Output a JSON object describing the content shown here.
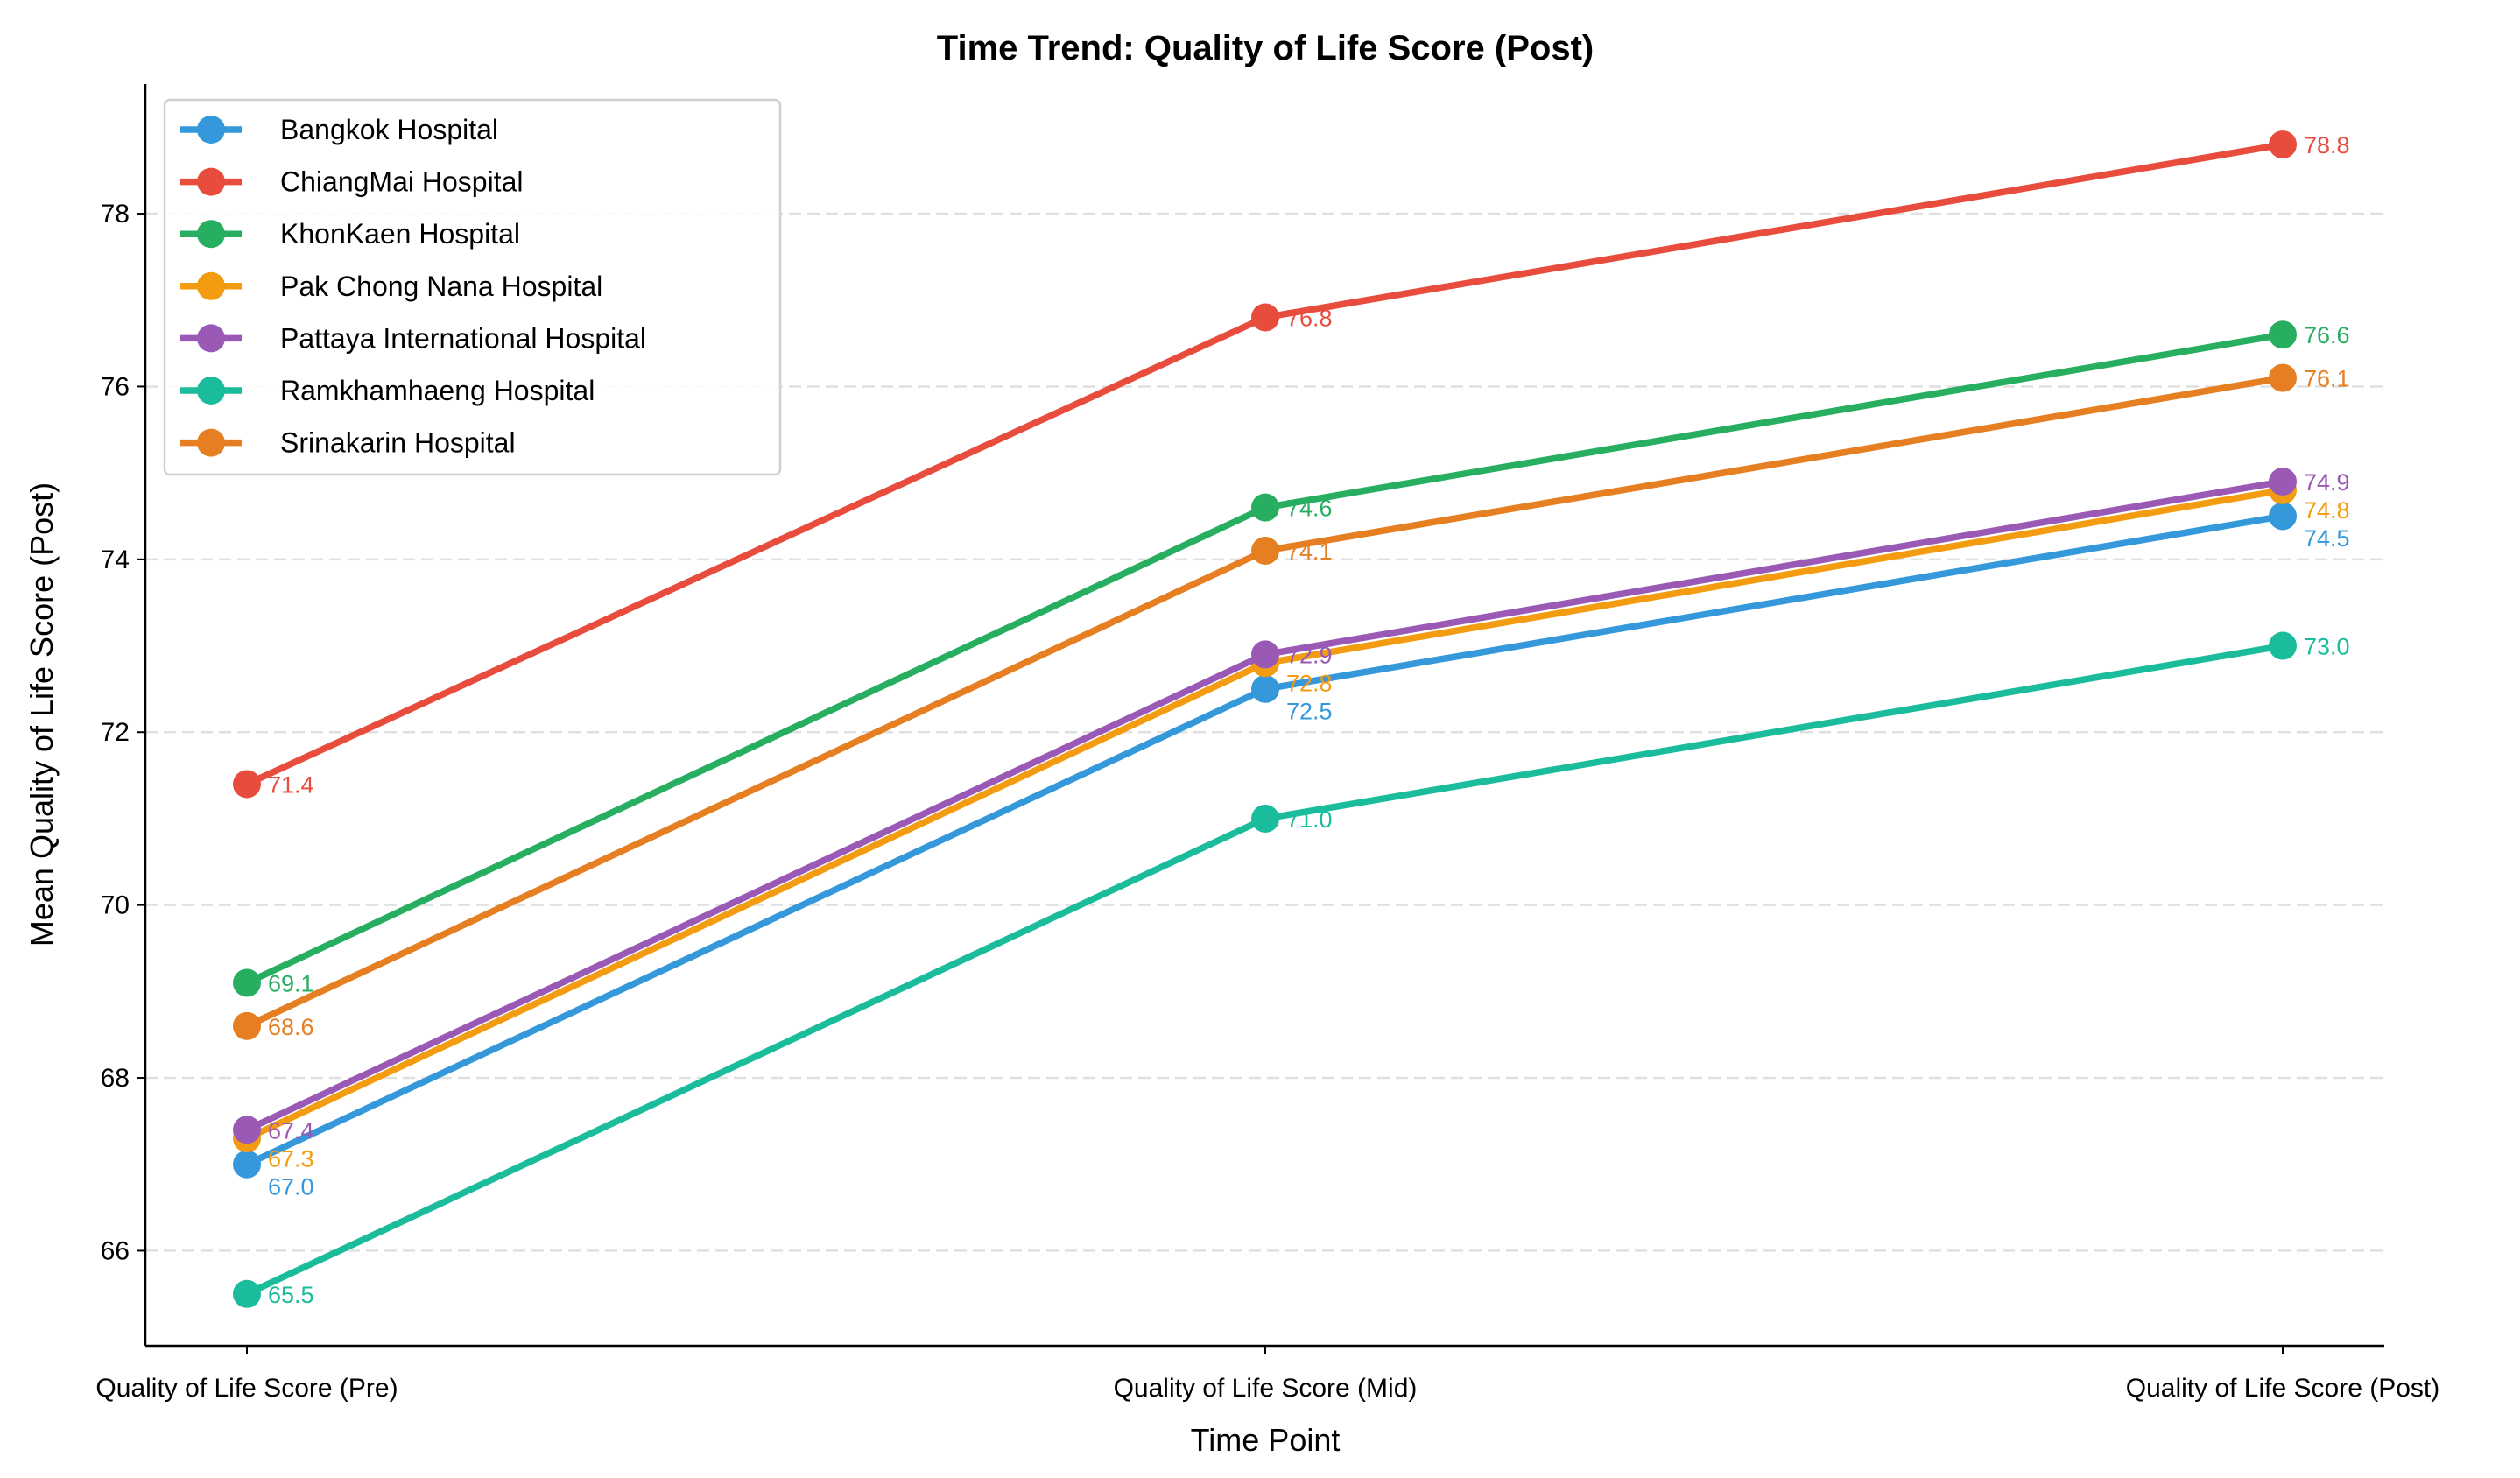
{
  "chart_data": {
    "type": "line",
    "title": "Time Trend: Quality of Life Score (Post)",
    "xlabel": "Time Point",
    "ylabel": "Mean Quality of Life Score (Post)",
    "categories": [
      "Quality of Life Score (Pre)",
      "Quality of Life Score (Mid)",
      "Quality of Life Score (Post)"
    ],
    "ylim": [
      64.9,
      79.5
    ],
    "yticks": [
      66,
      68,
      70,
      72,
      74,
      76,
      78
    ],
    "grid": "y-dashed",
    "legend": "top-left",
    "series": [
      {
        "name": "Bangkok Hospital",
        "color": "#3498db",
        "values": [
          67.0,
          72.5,
          74.5
        ]
      },
      {
        "name": "ChiangMai Hospital",
        "color": "#e74c3c",
        "values": [
          71.4,
          76.8,
          78.8
        ]
      },
      {
        "name": "KhonKaen Hospital",
        "color": "#27ae60",
        "values": [
          69.1,
          74.6,
          76.6
        ]
      },
      {
        "name": "Pak Chong Nana Hospital",
        "color": "#f39c12",
        "values": [
          67.3,
          72.8,
          74.8
        ]
      },
      {
        "name": "Pattaya International Hospital",
        "color": "#9b59b6",
        "values": [
          67.4,
          72.9,
          74.9
        ]
      },
      {
        "name": "Ramkhamhaeng Hospital",
        "color": "#1abc9c",
        "values": [
          65.5,
          71.0,
          73.0
        ]
      },
      {
        "name": "Srinakarin Hospital",
        "color": "#e67e22",
        "values": [
          68.6,
          74.1,
          76.1
        ]
      }
    ]
  }
}
